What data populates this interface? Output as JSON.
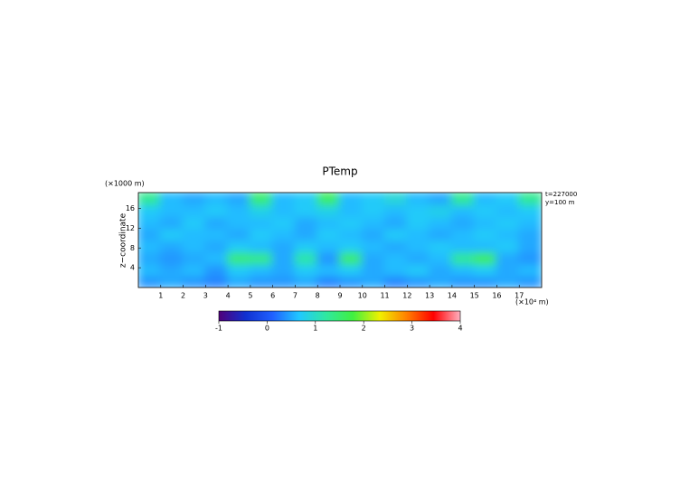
{
  "chart_data": {
    "type": "heatmap",
    "title": "PTemp",
    "y_unit": "(×1000 m)",
    "ylabel": "z−coordinate",
    "x_unit": "(×10⁴ m)",
    "annotations": [
      "t=227000",
      "y=100 m"
    ],
    "xlim": [
      0,
      18
    ],
    "xticks": [
      1,
      2,
      3,
      4,
      5,
      6,
      7,
      8,
      9,
      10,
      11,
      12,
      13,
      14,
      15,
      16,
      17
    ],
    "ylim": [
      0,
      19.2
    ],
    "yticks": [
      4,
      8,
      12,
      16
    ],
    "clim": [
      -1,
      4
    ],
    "cticks": [
      -1,
      0,
      1,
      2,
      3,
      4
    ],
    "colorscale": [
      "#50007a",
      "#1030d0",
      "#2060ff",
      "#20c8ff",
      "#30e8a0",
      "#40f040",
      "#f0f000",
      "#ff8000",
      "#ff0000",
      "#ffb0c0"
    ],
    "z": [
      [
        0.4,
        0.5,
        0.4,
        0.3,
        0.5,
        0.4,
        0.4,
        0.5,
        0.3,
        0.4,
        0.5,
        0.3,
        0.4,
        0.5,
        0.4,
        0.4,
        0.5,
        0.4
      ],
      [
        0.6,
        0.5,
        0.6,
        0.4,
        0.7,
        0.6,
        0.5,
        0.7,
        0.6,
        0.7,
        0.5,
        0.6,
        0.7,
        0.5,
        0.6,
        0.7,
        0.5,
        0.6
      ],
      [
        0.5,
        0.4,
        0.5,
        0.6,
        1.5,
        1.4,
        0.5,
        1.2,
        0.4,
        1.6,
        0.5,
        0.6,
        0.5,
        0.6,
        1.3,
        1.7,
        0.5,
        0.4
      ],
      [
        0.6,
        0.5,
        0.6,
        0.5,
        0.7,
        0.6,
        0.5,
        0.7,
        0.6,
        0.7,
        0.6,
        0.5,
        0.6,
        0.7,
        0.6,
        0.6,
        0.7,
        0.5
      ],
      [
        0.5,
        0.7,
        0.6,
        0.6,
        0.5,
        0.7,
        0.6,
        0.5,
        0.7,
        0.6,
        0.5,
        0.7,
        0.6,
        0.5,
        0.6,
        0.7,
        0.6,
        0.5
      ],
      [
        0.6,
        0.5,
        0.7,
        0.5,
        0.6,
        0.6,
        0.7,
        0.5,
        0.6,
        0.7,
        0.6,
        0.5,
        0.7,
        0.6,
        0.5,
        0.6,
        0.7,
        0.6
      ],
      [
        0.7,
        0.6,
        0.6,
        0.7,
        0.6,
        0.8,
        0.6,
        0.7,
        0.8,
        0.6,
        0.7,
        0.6,
        0.7,
        0.8,
        0.6,
        0.7,
        0.6,
        0.7
      ],
      [
        1.3,
        0.6,
        0.5,
        0.6,
        0.5,
        1.5,
        0.6,
        0.7,
        1.6,
        0.6,
        0.7,
        0.9,
        0.6,
        0.5,
        1.3,
        0.6,
        0.7,
        1.3
      ]
    ]
  }
}
